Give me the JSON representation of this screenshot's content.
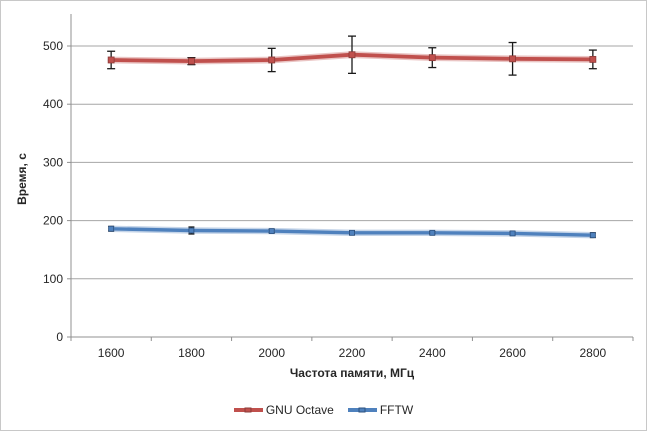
{
  "frame": {
    "background": "#FFFFFF",
    "border_color": "#C8C8C8"
  },
  "chart_data": {
    "type": "line",
    "title": "",
    "xlabel": "Частота памяти, МГц",
    "ylabel": "Время, с",
    "categories": [
      "1600",
      "1800",
      "2000",
      "2200",
      "2400",
      "2600",
      "2800"
    ],
    "yticks": [
      0,
      100,
      200,
      300,
      400,
      500
    ],
    "ylim": [
      0,
      555
    ],
    "grid": true,
    "legend_position": "bottom",
    "error_bars": true,
    "series": [
      {
        "name": "GNU Octave",
        "color": "#C0504D",
        "halo_color": "#D99694",
        "marker_edge": "#8C3B39",
        "values": [
          476,
          474,
          476,
          485,
          480,
          478,
          477
        ],
        "errors": [
          15,
          6,
          20,
          32,
          17,
          28,
          16
        ]
      },
      {
        "name": "FFTW",
        "color": "#4F81BD",
        "halo_color": "#95B3D7",
        "marker_edge": "#2E527F",
        "values": [
          186,
          183,
          182,
          179,
          179,
          178,
          175
        ],
        "errors": [
          4,
          6,
          3,
          3,
          2,
          3,
          4
        ]
      }
    ],
    "error_bar_color": "#1A1A1A",
    "axis_color": "#909090",
    "gridline_color": "#A6A6A6",
    "tick_label_color": "#262626"
  }
}
